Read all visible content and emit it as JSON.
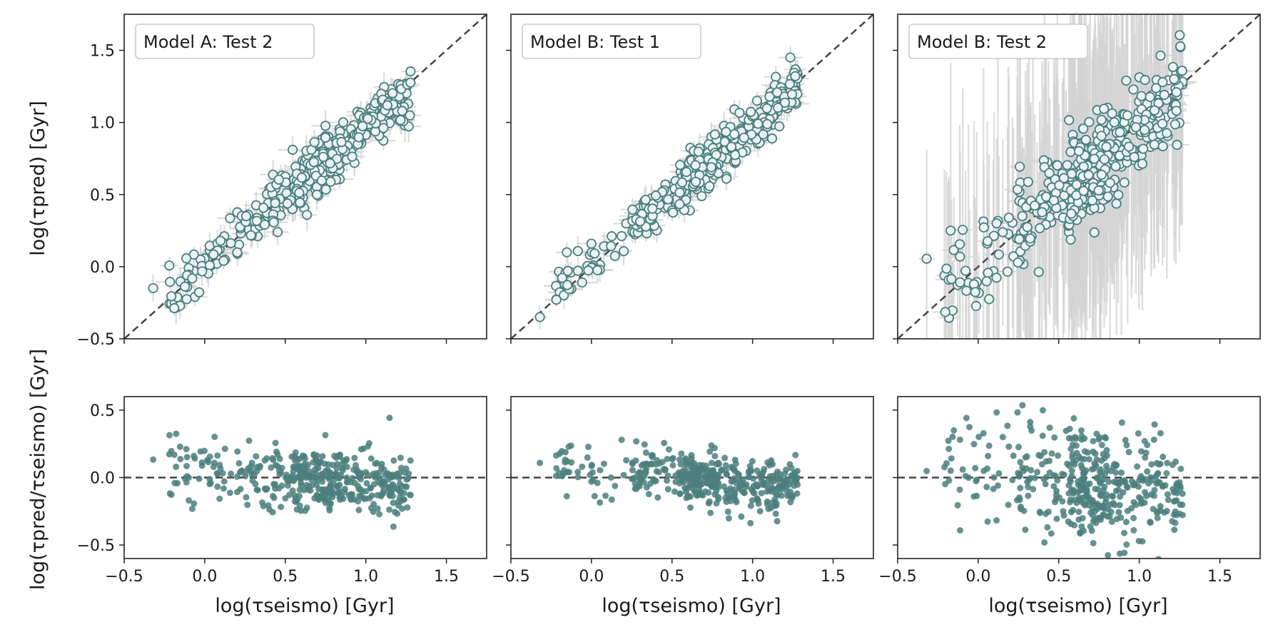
{
  "chart_data": {
    "type": "scatter",
    "axes": {
      "x_label": "log(τseismo) [Gyr]",
      "top_y_label": "log(τpred) [Gyr]",
      "bottom_y_label": "log(τpred/τseismo) [Gyr]",
      "top_xlim": [
        -0.5,
        1.75
      ],
      "top_ylim": [
        -0.5,
        1.75
      ],
      "bottom_ylim": [
        -0.6,
        0.6
      ],
      "x_ticks": [
        "−0.5",
        "0.0",
        "0.5",
        "1.0",
        "1.5"
      ],
      "top_y_ticks": [
        "−0.5",
        "0.0",
        "0.5",
        "1.0",
        "1.5"
      ],
      "bottom_y_ticks": [
        "−0.5",
        "0.0",
        "0.5"
      ],
      "grid": false
    },
    "reference_lines": {
      "top": "dashed one-to-one line y = x",
      "bottom": "dashed horizontal line y = 0"
    },
    "panels": [
      {
        "title": "Model A: Test 2",
        "n_points": 420,
        "top_scatter": 0.09,
        "residual_scatter": 0.11,
        "residual_slope": -0.1,
        "xerr": 0.06,
        "yerr": 0.09,
        "seed": 11
      },
      {
        "title": "Model B: Test 1",
        "n_points": 420,
        "top_scatter": 0.08,
        "residual_scatter": 0.1,
        "residual_slope": -0.09,
        "xerr": 0.06,
        "yerr": 0.08,
        "seed": 23
      },
      {
        "title": "Model B: Test 2",
        "n_points": 420,
        "top_scatter": 0.17,
        "residual_scatter": 0.2,
        "residual_slope": -0.2,
        "xerr": 0.06,
        "yerr": 0.9,
        "seed": 37
      }
    ],
    "colors": {
      "marker_edge": "#4b7f7e",
      "marker_face": "#ecf3f3",
      "residual_marker": "#4b7f7e",
      "errorbar": "#d3d3d3",
      "reference_line": "#444444"
    }
  }
}
